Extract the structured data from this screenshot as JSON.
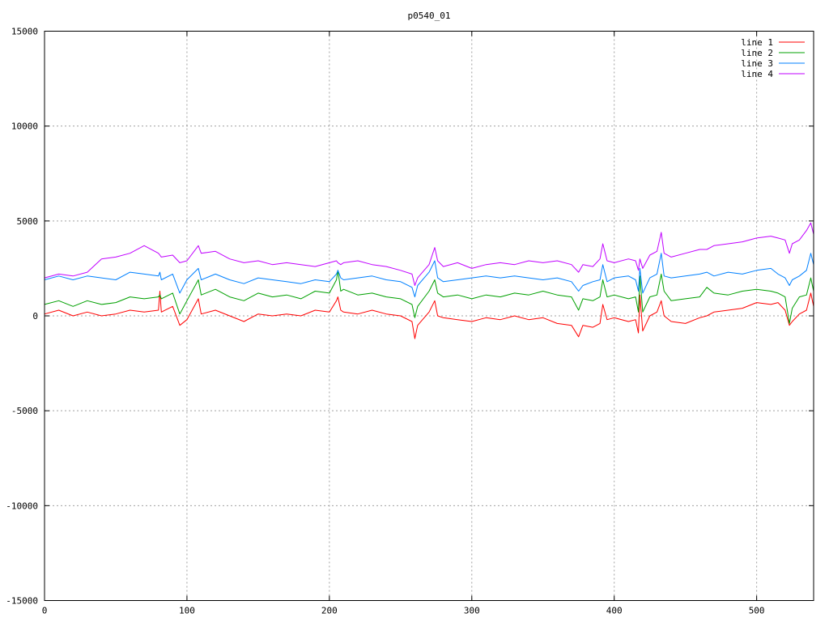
{
  "chart_data": {
    "type": "line",
    "title": "p0540_01",
    "xlim": [
      0,
      540
    ],
    "ylim": [
      -15000,
      15000
    ],
    "x_ticks": [
      0,
      100,
      200,
      300,
      400,
      500
    ],
    "y_ticks": [
      -15000,
      -10000,
      -5000,
      0,
      5000,
      10000,
      15000
    ],
    "grid": true,
    "legend_position": "top-right",
    "x": [
      0,
      10,
      20,
      30,
      40,
      50,
      60,
      70,
      80,
      81,
      82,
      90,
      95,
      100,
      108,
      110,
      120,
      130,
      140,
      150,
      160,
      170,
      180,
      190,
      200,
      205,
      206,
      208,
      210,
      220,
      230,
      240,
      250,
      258,
      260,
      262,
      270,
      274,
      276,
      280,
      290,
      300,
      310,
      320,
      330,
      340,
      350,
      360,
      370,
      375,
      378,
      385,
      390,
      392,
      395,
      400,
      410,
      415,
      417,
      418,
      420,
      425,
      430,
      433,
      435,
      440,
      450,
      460,
      465,
      470,
      480,
      490,
      500,
      510,
      515,
      520,
      523,
      525,
      530,
      535,
      538,
      540
    ],
    "series": [
      {
        "name": "line 1",
        "color": "#ff0000",
        "values": [
          100,
          300,
          0,
          200,
          0,
          100,
          300,
          200,
          300,
          1300,
          200,
          500,
          -500,
          -200,
          900,
          100,
          300,
          0,
          -300,
          100,
          0,
          100,
          0,
          300,
          200,
          800,
          1000,
          300,
          200,
          100,
          300,
          100,
          0,
          -300,
          -1200,
          -500,
          200,
          800,
          0,
          -100,
          -200,
          -300,
          -100,
          -200,
          0,
          -200,
          -100,
          -400,
          -500,
          -1100,
          -500,
          -600,
          -400,
          600,
          -200,
          -100,
          -300,
          -200,
          -900,
          1100,
          -800,
          0,
          200,
          800,
          0,
          -300,
          -400,
          -100,
          0,
          200,
          300,
          400,
          700,
          600,
          700,
          300,
          -500,
          -300,
          100,
          300,
          1200,
          500
        ]
      },
      {
        "name": "line 2",
        "color": "#00a000",
        "values": [
          600,
          800,
          500,
          800,
          600,
          700,
          1000,
          900,
          1000,
          1100,
          900,
          1200,
          100,
          800,
          1900,
          1100,
          1400,
          1000,
          800,
          1200,
          1000,
          1100,
          900,
          1300,
          1200,
          1900,
          2400,
          1300,
          1400,
          1100,
          1200,
          1000,
          900,
          600,
          -100,
          500,
          1300,
          1900,
          1200,
          1000,
          1100,
          900,
          1100,
          1000,
          1200,
          1100,
          1300,
          1100,
          1000,
          300,
          900,
          800,
          1000,
          1900,
          1000,
          1100,
          900,
          1000,
          200,
          2100,
          200,
          1000,
          1100,
          2200,
          1300,
          800,
          900,
          1000,
          1500,
          1200,
          1100,
          1300,
          1400,
          1300,
          1200,
          1000,
          -400,
          400,
          1000,
          1100,
          2000,
          1300
        ]
      },
      {
        "name": "line 3",
        "color": "#0080ff",
        "values": [
          1900,
          2100,
          1900,
          2100,
          2000,
          1900,
          2300,
          2200,
          2100,
          2300,
          1900,
          2200,
          1200,
          1900,
          2500,
          1900,
          2200,
          1900,
          1700,
          2000,
          1900,
          1800,
          1700,
          1900,
          1800,
          2200,
          2400,
          2000,
          1900,
          2000,
          2100,
          1900,
          1800,
          1500,
          1000,
          1600,
          2300,
          2900,
          2000,
          1800,
          1900,
          2000,
          2100,
          2000,
          2100,
          2000,
          1900,
          2000,
          1800,
          1300,
          1600,
          1800,
          1900,
          2700,
          1800,
          2000,
          2100,
          1900,
          1300,
          2500,
          1200,
          2000,
          2200,
          3300,
          2100,
          2000,
          2100,
          2200,
          2300,
          2100,
          2300,
          2200,
          2400,
          2500,
          2200,
          2000,
          1600,
          1900,
          2100,
          2400,
          3300,
          2700
        ]
      },
      {
        "name": "line 4",
        "color": "#c000ff",
        "values": [
          2000,
          2200,
          2100,
          2300,
          3000,
          3100,
          3300,
          3700,
          3300,
          3200,
          3100,
          3200,
          2800,
          2900,
          3700,
          3300,
          3400,
          3000,
          2800,
          2900,
          2700,
          2800,
          2700,
          2600,
          2800,
          2900,
          2800,
          2700,
          2800,
          2900,
          2700,
          2600,
          2400,
          2200,
          1600,
          2000,
          2700,
          3600,
          2900,
          2600,
          2800,
          2500,
          2700,
          2800,
          2700,
          2900,
          2800,
          2900,
          2700,
          2300,
          2700,
          2600,
          3000,
          3800,
          2900,
          2800,
          3000,
          2900,
          2400,
          3000,
          2500,
          3200,
          3400,
          4400,
          3300,
          3100,
          3300,
          3500,
          3500,
          3700,
          3800,
          3900,
          4100,
          4200,
          4100,
          4000,
          3300,
          3800,
          4000,
          4500,
          4900,
          4300
        ]
      }
    ]
  }
}
